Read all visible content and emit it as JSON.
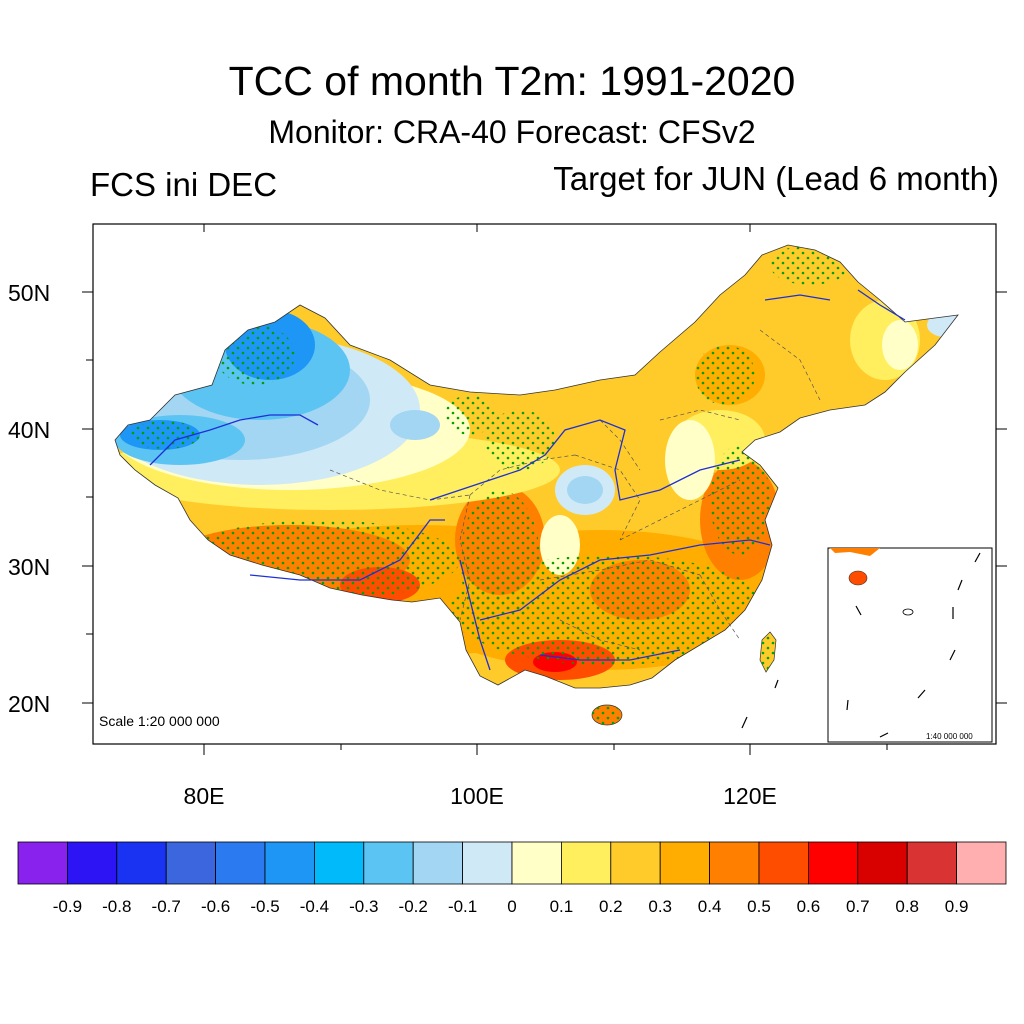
{
  "title": "TCC of month T2m: 1991-2020",
  "subtitle": "Monitor: CRA-40   Forecast: CFSv2",
  "left_label": "FCS ini DEC",
  "right_label": "Target for JUN (Lead 6 month)",
  "map": {
    "lat_labels": [
      "50N",
      "40N",
      "30N",
      "20N"
    ],
    "lon_labels": [
      "80E",
      "100E",
      "120E"
    ],
    "scale_label": "Scale 1:20 000 000",
    "inset_scale_label": "1:40 000 000"
  },
  "colorbar": {
    "colors": [
      "#8a22ee",
      "#2c14f5",
      "#1a32f2",
      "#3c66de",
      "#2b7af0",
      "#1e96f5",
      "#00baf9",
      "#5cc4f3",
      "#a3d6f2",
      "#cfe9f7",
      "#ffffc7",
      "#ffee5e",
      "#ffcb2b",
      "#ffad00",
      "#ff8000",
      "#ff4d00",
      "#ff0000",
      "#d90000",
      "#d93333",
      "#ffafaf"
    ],
    "labels": [
      "-0.9",
      "-0.8",
      "-0.7",
      "-0.6",
      "-0.5",
      "-0.4",
      "-0.3",
      "-0.2",
      "-0.1",
      "0",
      "0.1",
      "0.2",
      "0.3",
      "0.4",
      "0.5",
      "0.6",
      "0.7",
      "0.8",
      "0.9"
    ]
  },
  "colors": {
    "stipple": "#00a000",
    "river": "#1e2fd6",
    "border": "#555555"
  }
}
